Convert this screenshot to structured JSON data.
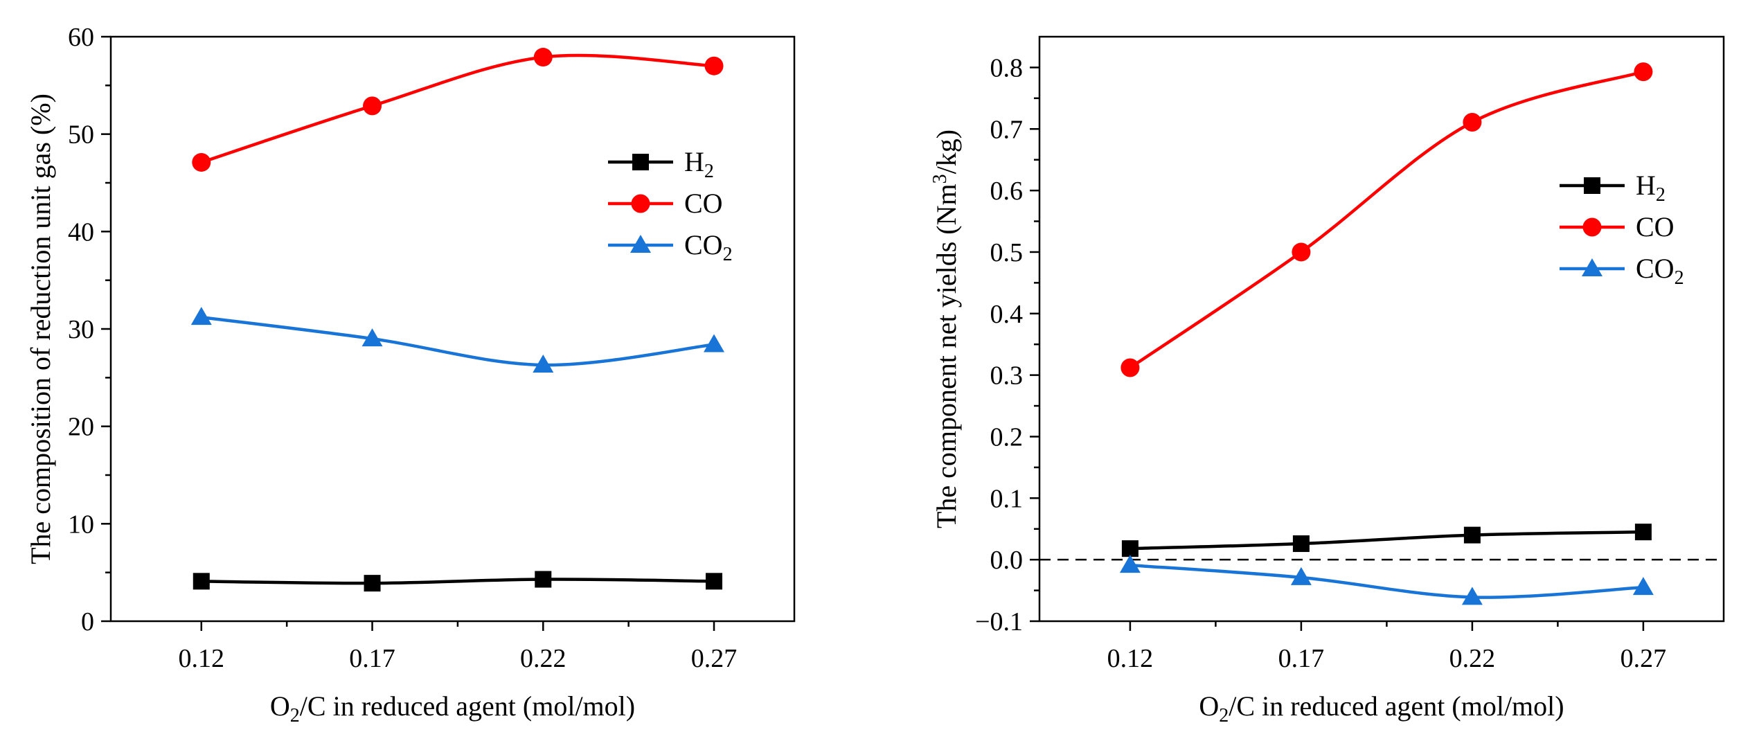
{
  "figure": {
    "description": "Two side-by-side line charts of gas composition and net yields versus O2/C ratio"
  },
  "legend_entries": [
    {
      "name": "H",
      "sub": "2",
      "color": "#000000",
      "marker": "square"
    },
    {
      "name": "CO",
      "sub": "",
      "color": "#ff0000",
      "marker": "circle"
    },
    {
      "name": "CO",
      "sub": "2",
      "color": "#1874d6",
      "marker": "triangle"
    }
  ],
  "chart_data": [
    {
      "type": "line",
      "title": "",
      "xlabel": {
        "pre": "O",
        "sub": "2",
        "post": "/C in reduced agent (mol/mol)"
      },
      "ylabel": {
        "pre": "The composition of reduction unit gas (%)",
        "sup": "",
        "post": ""
      },
      "categories": [
        "0.12",
        "0.17",
        "0.22",
        "0.27"
      ],
      "x": [
        0.12,
        0.17,
        0.22,
        0.27
      ],
      "xlim": [
        0.0935,
        0.2935
      ],
      "ylim": [
        0,
        60
      ],
      "yticks": [
        0,
        10,
        20,
        30,
        40,
        50,
        60
      ],
      "ytick_labels": [
        "0",
        "10",
        "20",
        "30",
        "40",
        "50",
        "60"
      ],
      "zero_line": false,
      "legend_position": "upper-right",
      "series": [
        {
          "name": "H2",
          "values": [
            4.1,
            3.9,
            4.3,
            4.1
          ]
        },
        {
          "name": "CO",
          "values": [
            47.1,
            52.9,
            57.9,
            57.0
          ]
        },
        {
          "name": "CO2",
          "values": [
            31.2,
            29.0,
            26.3,
            28.4
          ]
        }
      ]
    },
    {
      "type": "line",
      "title": "",
      "xlabel": {
        "pre": "O",
        "sub": "2",
        "post": "/C in reduced agent (mol/mol)"
      },
      "ylabel": {
        "pre": "The component net yields (Nm",
        "sup": "3",
        "post": "/kg)"
      },
      "categories": [
        "0.12",
        "0.17",
        "0.22",
        "0.27"
      ],
      "x": [
        0.12,
        0.17,
        0.22,
        0.27
      ],
      "xlim": [
        0.0935,
        0.2935
      ],
      "ylim": [
        -0.1,
        0.85
      ],
      "yticks": [
        -0.1,
        0.0,
        0.1,
        0.2,
        0.3,
        0.4,
        0.5,
        0.6,
        0.7,
        0.8
      ],
      "ytick_labels": [
        "−0.1",
        "0.0",
        "0.1",
        "0.2",
        "0.3",
        "0.4",
        "0.5",
        "0.6",
        "0.7",
        "0.8"
      ],
      "zero_line": true,
      "legend_position": "right",
      "series": [
        {
          "name": "H2",
          "values": [
            0.018,
            0.026,
            0.04,
            0.045
          ]
        },
        {
          "name": "CO",
          "values": [
            0.312,
            0.5,
            0.711,
            0.793
          ]
        },
        {
          "name": "CO2",
          "values": [
            -0.009,
            -0.029,
            -0.061,
            -0.045
          ]
        }
      ]
    }
  ]
}
